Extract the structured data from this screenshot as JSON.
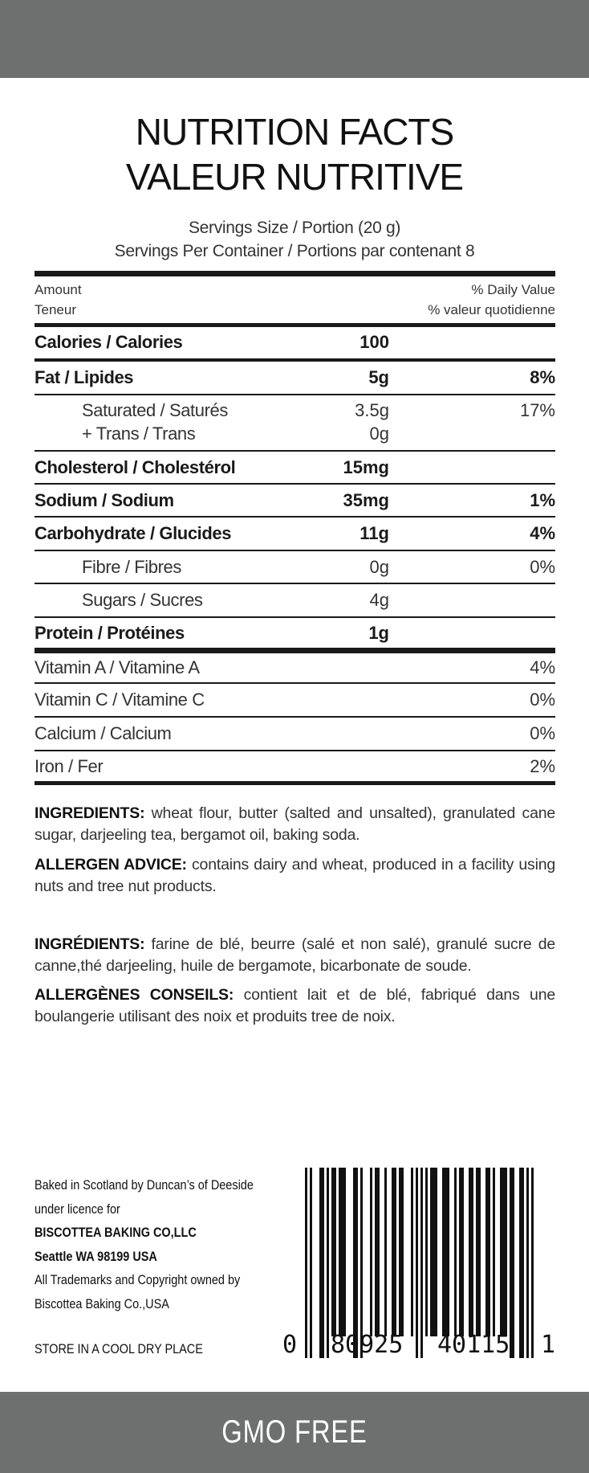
{
  "title": {
    "line1": "NUTRITION FACTS",
    "line2": "VALEUR NUTRITIVE"
  },
  "serving_size": "Servings Size / Portion (20 g)",
  "servings_per_container": "Servings Per Container / Portions par contenant 8",
  "header": {
    "amount_en": "Amount",
    "amount_fr": "Teneur",
    "dv_en": "% Daily Value",
    "dv_fr": "% valeur quotidienne"
  },
  "rows": [
    {
      "label": "Calories / Calories",
      "amount": "100",
      "dv": "",
      "style": "bold"
    },
    {
      "label": "Fat / Lipides",
      "amount": "5g",
      "dv": "8%",
      "style": "bold"
    },
    {
      "label": "Saturated / Saturés",
      "label2": "+ Trans / Trans",
      "amount": "3.5g",
      "amount2": "0g",
      "dv": "17%",
      "style": "light indent"
    },
    {
      "label": "Cholesterol / Cholestérol",
      "amount": "15mg",
      "dv": "",
      "style": "bold"
    },
    {
      "label": "Sodium / Sodium",
      "amount": "35mg",
      "dv": "1%",
      "style": "bold"
    },
    {
      "label": "Carbohydrate / Glucides",
      "amount": "11g",
      "dv": "4%",
      "style": "bold"
    },
    {
      "label": "Fibre / Fibres",
      "amount": "0g",
      "dv": "0%",
      "style": "light indent"
    },
    {
      "label": "Sugars / Sucres",
      "amount": "4g",
      "dv": "",
      "style": "light indent"
    },
    {
      "label": "Protein / Protéines",
      "amount": "1g",
      "dv": "",
      "style": "bold"
    },
    {
      "label": "Vitamin A / Vitamine A",
      "amount": "",
      "dv": "4%",
      "style": "light"
    },
    {
      "label": "Vitamin C / Vitamine C",
      "amount": "",
      "dv": "0%",
      "style": "light"
    },
    {
      "label": "Calcium / Calcium",
      "amount": "",
      "dv": "0%",
      "style": "light"
    },
    {
      "label": "Iron / Fer",
      "amount": "",
      "dv": "2%",
      "style": "light"
    }
  ],
  "ingredients_en": {
    "heading": "INGREDIENTS:",
    "text": " wheat flour, butter (salted and unsalted), granulated cane sugar, darjeeling tea, bergamot oil, baking soda."
  },
  "allergen_en": {
    "heading": "ALLERGEN ADVICE:",
    "text": " contains dairy and wheat, produced in a facility using nuts and tree nut products."
  },
  "ingredients_fr": {
    "heading": "INGRÉDIENTS:",
    "text": " farine de blé, beurre (salé et non salé), granulé sucre de canne,thé darjeeling, huile de bergamote, bicarbonate de soude."
  },
  "allergen_fr": {
    "heading": "ALLERGÈNES CONSEILS:",
    "text": " contient lait et de blé, fabriqué dans une boulangerie utilisant des noix et produits tree de noix."
  },
  "footer": {
    "line1": "Baked in Scotland by Duncan’s of Deeside",
    "line2": "under licence for",
    "line3": "BISCOTTEA BAKING CO,LLC",
    "line4": "Seattle WA 98199 USA",
    "line5": "All Trademarks and Copyright owned by",
    "line6": "Biscottea Baking Co.,USA",
    "storage": "STORE IN A COOL DRY PLACE"
  },
  "barcode": {
    "first": "0",
    "left": "80925",
    "right": "40115",
    "last": "1"
  },
  "banner": "GMO FREE",
  "colors": {
    "band": "#6e706f",
    "ink": "#1a1a1a"
  }
}
